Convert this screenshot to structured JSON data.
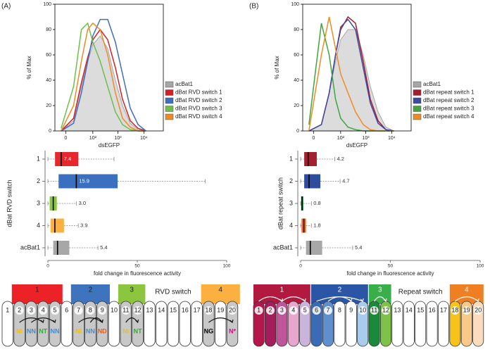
{
  "chart_data": [
    {
      "type": "line",
      "panel_label": "(A)",
      "ylabel": "% of Max",
      "xlabel": "dsEGFP",
      "xscale": "biexponential",
      "xlim": [
        -16,
        56000
      ],
      "xticks": [
        0,
        {
          "value": 100,
          "label": "10²"
        },
        {
          "value": 1000,
          "label": "10³"
        },
        {
          "value": 10000,
          "label": "10⁴"
        }
      ],
      "ylim": [
        0,
        100
      ],
      "yticks": [
        0,
        20,
        40,
        60,
        80,
        100
      ],
      "legend": "right",
      "x": [
        -5,
        10,
        30,
        60,
        100,
        200,
        400,
        800,
        1500,
        3000,
        6000,
        12000
      ],
      "series": [
        {
          "name": "acBat1",
          "color": "#a6a6a6",
          "fill": true,
          "values": [
            0,
            8,
            35,
            55,
            68,
            75,
            65,
            40,
            20,
            6,
            1,
            0
          ]
        },
        {
          "name": "dBat RVD switch 1",
          "color": "#d32027",
          "values": [
            0,
            10,
            38,
            58,
            72,
            80,
            72,
            50,
            25,
            8,
            2,
            0
          ]
        },
        {
          "name": "dBat RVD switch 2",
          "color": "#3d6fc0",
          "values": [
            0,
            6,
            30,
            55,
            75,
            88,
            88,
            70,
            45,
            18,
            5,
            0
          ]
        },
        {
          "name": "dBat RVD switch 3",
          "color": "#6cc04a",
          "values": [
            2,
            35,
            80,
            85,
            70,
            55,
            35,
            15,
            5,
            1,
            0,
            0
          ]
        },
        {
          "name": "dBat RVD switch 4",
          "color": "#f08a24",
          "values": [
            0,
            20,
            55,
            80,
            85,
            80,
            60,
            30,
            10,
            3,
            0,
            0
          ]
        }
      ]
    },
    {
      "type": "line",
      "panel_label": "(B)",
      "ylabel": "% of Max",
      "xlabel": "dsEGFP",
      "xscale": "biexponential",
      "xlim": [
        -16,
        56000
      ],
      "xticks": [
        0,
        {
          "value": 100,
          "label": "10²"
        },
        {
          "value": 1000,
          "label": "10³"
        },
        {
          "value": 10000,
          "label": "10⁴"
        }
      ],
      "ylim": [
        0,
        100
      ],
      "yticks": [
        0,
        20,
        40,
        60,
        80,
        100
      ],
      "legend": "right",
      "x": [
        -5,
        10,
        30,
        60,
        100,
        200,
        400,
        800,
        1500,
        3000,
        6000,
        12000
      ],
      "series": [
        {
          "name": "acBat1",
          "color": "#a6a6a6",
          "fill": true,
          "values": [
            0,
            5,
            30,
            55,
            72,
            80,
            80,
            60,
            35,
            15,
            3,
            0
          ]
        },
        {
          "name": "dBat repeat switch 1",
          "color": "#a51c30",
          "values": [
            0,
            5,
            30,
            60,
            80,
            90,
            85,
            55,
            25,
            8,
            1,
            0
          ]
        },
        {
          "name": "dBat repeat switch 2",
          "color": "#3e4aa0",
          "values": [
            0,
            5,
            30,
            60,
            82,
            88,
            80,
            50,
            22,
            6,
            1,
            0
          ]
        },
        {
          "name": "dBat repeat switch 3",
          "color": "#3da73a",
          "values": [
            5,
            85,
            60,
            25,
            10,
            3,
            1,
            0,
            0,
            0,
            0,
            0
          ]
        },
        {
          "name": "dBat repeat switch 4",
          "color": "#f08a24",
          "values": [
            0,
            60,
            90,
            65,
            45,
            30,
            15,
            5,
            1,
            0,
            0,
            0
          ]
        }
      ]
    },
    {
      "type": "box",
      "ylabel": "dBat RVD switch",
      "xlabel": "fold change in fluorescence activity",
      "xlim": [
        0,
        100
      ],
      "xticks": [
        0,
        50,
        100
      ],
      "categories": [
        "1",
        "2",
        "3",
        "4",
        "acBat1"
      ],
      "colors": [
        "#e8262b",
        "#3b6fbf",
        "#8cc63f",
        "#fbb040",
        "#a7a7a7"
      ],
      "min": [
        0,
        0,
        0,
        0,
        0
      ],
      "q1": [
        4,
        6,
        1,
        1.5,
        3
      ],
      "median": [
        7.4,
        15.9,
        3.0,
        3.9,
        5.4
      ],
      "q3": [
        17,
        39,
        5,
        9,
        12
      ],
      "max": [
        37,
        88,
        16,
        17,
        28
      ],
      "value_labels": [
        "7.4",
        "15.9",
        "3.0",
        "3.9",
        "5.4"
      ]
    },
    {
      "type": "box",
      "ylabel": "dBat repeat switch",
      "xlabel": "fold change in fluorescence activity",
      "xlim": [
        0,
        100
      ],
      "xticks": [
        0,
        50,
        100
      ],
      "categories": [
        "1",
        "2",
        "3",
        "4",
        "acBat1"
      ],
      "colors": [
        "#a3202e",
        "#2e4c9e",
        "#1b8a3a",
        "#f26c22",
        "#a7a7a7"
      ],
      "min": [
        0,
        0,
        0,
        0,
        0
      ],
      "q1": [
        2,
        2,
        0.3,
        0.5,
        3
      ],
      "median": [
        4.2,
        4.7,
        0.8,
        1.8,
        5.4
      ],
      "q3": [
        9,
        11,
        1.5,
        3,
        12
      ],
      "max": [
        19,
        22,
        6,
        6,
        29
      ],
      "value_labels": [
        "4.2",
        "4.7",
        "0.8",
        "1.8",
        "5.4"
      ]
    }
  ],
  "diagrams": [
    {
      "switch_label": "RVD switch",
      "groups": [
        {
          "label": "1",
          "color": "#ec2227"
        },
        {
          "label": "2",
          "color": "#3e74bd"
        },
        {
          "label": "3",
          "color": "#8cc63f"
        },
        {
          "label": "4",
          "color": "#fbb040"
        }
      ],
      "repeats": [
        1,
        2,
        3,
        4,
        5,
        6,
        7,
        8,
        9,
        10,
        11,
        12,
        13,
        14,
        15,
        16,
        17,
        18,
        19,
        20
      ],
      "rvds": [
        null,
        "NI",
        "NN",
        "NT",
        "NN",
        null,
        "NI",
        "NN",
        "ND",
        null,
        "NI",
        "NT",
        null,
        null,
        null,
        null,
        null,
        "NG",
        null,
        "N*"
      ],
      "rvd_colors": [
        null,
        "#e8c21a",
        "#3b8fd4",
        "#3aa53a",
        "#3b8fd4",
        null,
        "#e8c21a",
        "#3b8fd4",
        "#e0601c",
        null,
        "#e8c21a",
        "#3aa53a",
        null,
        null,
        null,
        null,
        null,
        "#000000",
        null,
        "#c0187f"
      ]
    },
    {
      "switch_label": "Repeat switch",
      "groups": [
        {
          "label": "1",
          "color": "#b2193f"
        },
        {
          "label": "2",
          "color": "#2b56a6"
        },
        {
          "label": "3",
          "color": "#3aae49"
        },
        {
          "label": "4",
          "color": "#f07f22"
        }
      ],
      "repeats": [
        1,
        2,
        3,
        4,
        5,
        6,
        7,
        8,
        9,
        10,
        11,
        12,
        13,
        14,
        15,
        16,
        17,
        18,
        19,
        20
      ],
      "repeat_colors": [
        "#b5174a",
        "#a31e5a",
        "#c0569a",
        "#e8a6cd",
        "#cbb4dc",
        "#3a6bb7",
        "#5f8fcf",
        null,
        null,
        "#a9cbee",
        "#1a8a3a",
        "#7fc24a",
        null,
        null,
        null,
        null,
        null,
        "#f7c31a",
        "#f9c98a",
        "#fcdcbc"
      ]
    }
  ]
}
